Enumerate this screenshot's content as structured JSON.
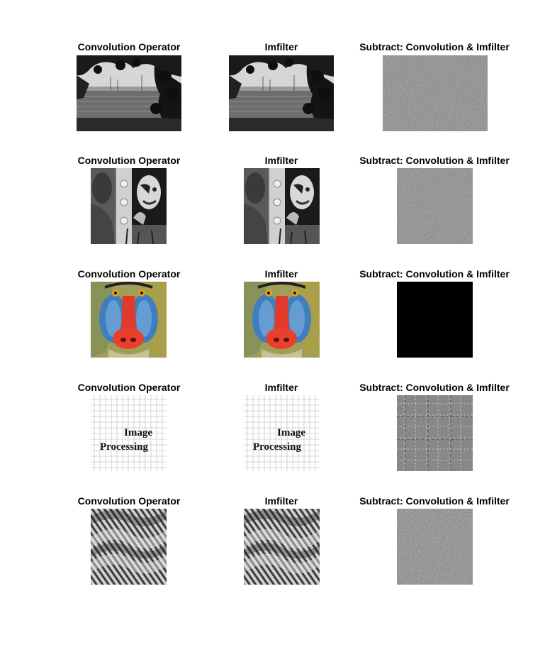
{
  "figure": {
    "rows": [
      {
        "scene": "harbor-trees",
        "titles": [
          "Convolution Operator",
          "Imfilter",
          "Subtract: Convolution & Imfilter"
        ]
      },
      {
        "scene": "clown-mirror",
        "titles": [
          "Convolution Operator",
          "Imfilter",
          "Subtract: Convolution & Imfilter"
        ]
      },
      {
        "scene": "mandrill",
        "titles": [
          "Convolution Operator",
          "Imfilter",
          "Subtract: Convolution & Imfilter"
        ]
      },
      {
        "scene": "text-grid",
        "titles": [
          "Convolution Operator",
          "Imfilter",
          "Subtract: Convolution & Imfilter"
        ],
        "image_text": [
          "Image",
          "Processing"
        ]
      },
      {
        "scene": "stripes-texture",
        "titles": [
          "Convolution Operator",
          "Imfilter",
          "Subtract: Convolution & Imfilter"
        ]
      }
    ]
  }
}
